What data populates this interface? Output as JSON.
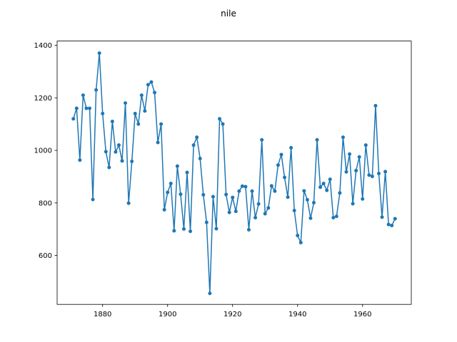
{
  "chart_data": {
    "type": "line",
    "title": "nile",
    "xlabel": "",
    "ylabel": "",
    "xlim": [
      1866,
      1975
    ],
    "ylim": [
      414,
      1416
    ],
    "xticks": [
      1880,
      1900,
      1920,
      1940,
      1960
    ],
    "yticks": [
      600,
      800,
      1000,
      1200,
      1400
    ],
    "grid": false,
    "series": [
      {
        "color": "#1f77b4",
        "marker": "circle",
        "x": [
          1871,
          1872,
          1873,
          1874,
          1875,
          1876,
          1877,
          1878,
          1879,
          1880,
          1881,
          1882,
          1883,
          1884,
          1885,
          1886,
          1887,
          1888,
          1889,
          1890,
          1891,
          1892,
          1893,
          1894,
          1895,
          1896,
          1897,
          1898,
          1899,
          1900,
          1901,
          1902,
          1903,
          1904,
          1905,
          1906,
          1907,
          1908,
          1909,
          1910,
          1911,
          1912,
          1913,
          1914,
          1915,
          1916,
          1917,
          1918,
          1919,
          1920,
          1921,
          1922,
          1923,
          1924,
          1925,
          1926,
          1927,
          1928,
          1929,
          1930,
          1931,
          1932,
          1933,
          1934,
          1935,
          1936,
          1937,
          1938,
          1939,
          1940,
          1941,
          1942,
          1943,
          1944,
          1945,
          1946,
          1947,
          1948,
          1949,
          1950,
          1951,
          1952,
          1953,
          1954,
          1955,
          1956,
          1957,
          1958,
          1959,
          1960,
          1961,
          1962,
          1963,
          1964,
          1965,
          1966,
          1967,
          1968,
          1969,
          1970
        ],
        "values": [
          1120,
          1160,
          963,
          1210,
          1160,
          1160,
          813,
          1230,
          1370,
          1140,
          995,
          935,
          1110,
          994,
          1020,
          960,
          1180,
          799,
          958,
          1140,
          1100,
          1210,
          1150,
          1250,
          1260,
          1220,
          1030,
          1100,
          774,
          840,
          874,
          694,
          940,
          833,
          701,
          916,
          692,
          1020,
          1050,
          969,
          831,
          726,
          456,
          824,
          702,
          1120,
          1100,
          832,
          764,
          821,
          768,
          845,
          864,
          862,
          698,
          845,
          744,
          796,
          1040,
          759,
          781,
          865,
          845,
          944,
          984,
          897,
          822,
          1010,
          771,
          676,
          649,
          846,
          812,
          742,
          801,
          1040,
          860,
          874,
          848,
          890,
          744,
          749,
          838,
          1050,
          918,
          986,
          797,
          923,
          975,
          815,
          1020,
          906,
          901,
          1170,
          912,
          746,
          919,
          718,
          714,
          740
        ]
      }
    ]
  }
}
